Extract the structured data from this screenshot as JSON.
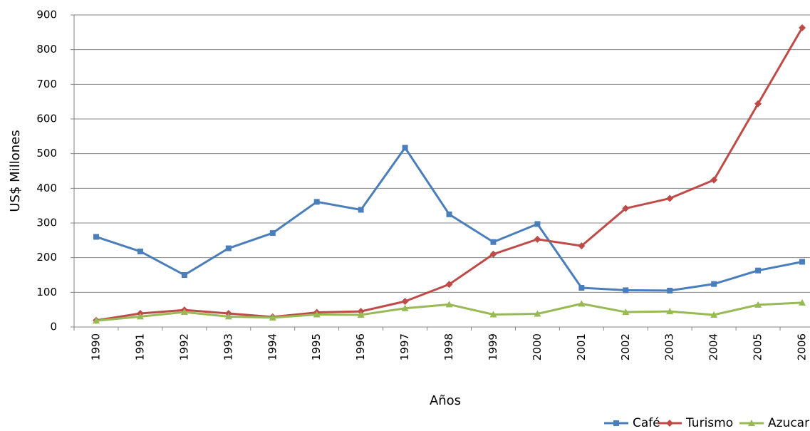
{
  "chart_data": {
    "type": "line",
    "x_label": "Años",
    "y_label": "US$ Millones",
    "categories": [
      "1990",
      "1991",
      "1992",
      "1993",
      "1994",
      "1995",
      "1996",
      "1997",
      "1998",
      "1999",
      "2000",
      "2001",
      "2002",
      "2003",
      "2004",
      "2005",
      "2006"
    ],
    "series": [
      {
        "name": "Café",
        "color": "#4a7ebb",
        "marker": "square",
        "values": [
          260,
          218,
          150,
          227,
          271,
          361,
          338,
          517,
          325,
          245,
          297,
          113,
          106,
          105,
          124,
          163,
          188
        ]
      },
      {
        "name": "Turismo",
        "color": "#be4b48",
        "marker": "diamond",
        "values": [
          19,
          39,
          49,
          39,
          29,
          42,
          45,
          74,
          123,
          210,
          253,
          234,
          342,
          371,
          424,
          644,
          863
        ]
      },
      {
        "name": "Azucar",
        "color": "#98b954",
        "marker": "triangle",
        "values": [
          18,
          30,
          43,
          30,
          27,
          36,
          35,
          54,
          65,
          36,
          38,
          67,
          43,
          45,
          35,
          64,
          70
        ]
      }
    ],
    "ylim": [
      0,
      900
    ],
    "yticks": [
      0,
      100,
      200,
      300,
      400,
      500,
      600,
      700,
      800,
      900
    ],
    "grid": true,
    "legend": "bottom-right"
  }
}
